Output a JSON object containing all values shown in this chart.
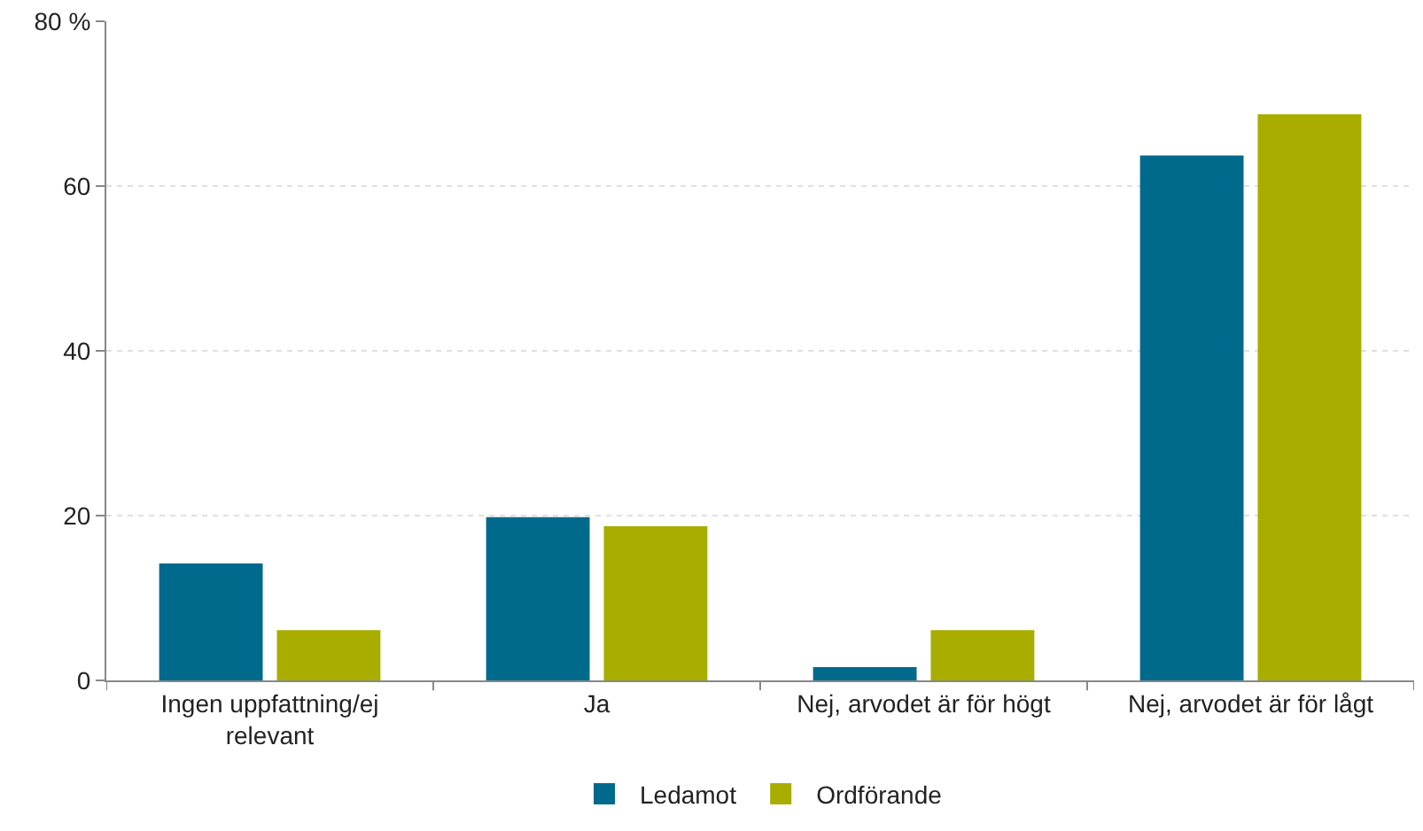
{
  "chart_data": {
    "type": "bar",
    "categories": [
      "Ingen uppfattning/ej relevant",
      "Ja",
      "Nej, arvodet är för högt",
      "Nej, arvodet är för lågt"
    ],
    "series": [
      {
        "name": "Ledamot",
        "color": "#006a8c",
        "values": [
          14.2,
          19.8,
          1.6,
          63.7
        ]
      },
      {
        "name": "Ordförande",
        "color": "#a8ad00",
        "values": [
          6.1,
          18.7,
          6.1,
          68.7
        ]
      }
    ],
    "ylim": [
      0,
      80
    ],
    "yticks": [
      0,
      20,
      40,
      60,
      {
        "value": 80,
        "label": "80 %"
      }
    ],
    "grid": "y",
    "legend": "bottom"
  }
}
